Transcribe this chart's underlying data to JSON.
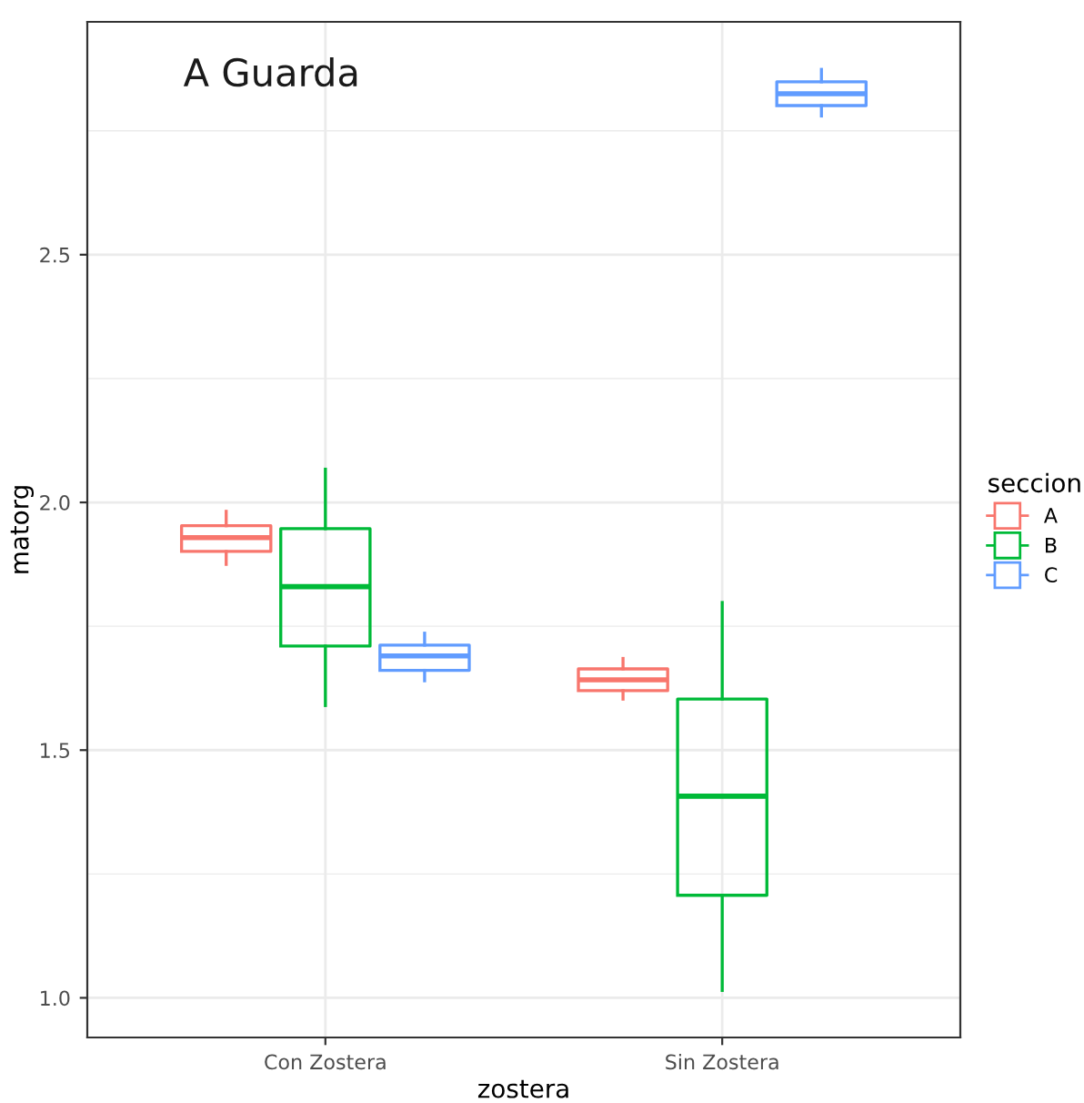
{
  "chart_data": {
    "type": "box",
    "title": "A Guarda",
    "xlabel": "zostera",
    "ylabel": "matorg",
    "legend_title": "seccion",
    "legend": "right",
    "grid": true,
    "categories": [
      "Con Zostera",
      "Sin Zostera"
    ],
    "ylim": [
      0.92,
      2.97
    ],
    "yticks": [
      {
        "value": 1,
        "label": "1.0"
      },
      {
        "value": 1.25,
        "label": null
      },
      1.5,
      {
        "value": 1.75,
        "label": null
      },
      {
        "value": 2,
        "label": "2.0"
      },
      {
        "value": 2.25,
        "label": null
      },
      2.5,
      {
        "value": 2.75,
        "label": null
      }
    ],
    "series": [
      {
        "name": "A",
        "color": "#f8766d",
        "boxes": [
          {
            "low": 1.875,
            "q1": 1.901,
            "median": 1.929,
            "q3": 1.953,
            "high": 1.982
          },
          {
            "low": 1.603,
            "q1": 1.62,
            "median": 1.642,
            "q3": 1.664,
            "high": 1.685
          }
        ]
      },
      {
        "name": "B",
        "color": "#00ba38",
        "boxes": [
          {
            "low": 1.59,
            "q1": 1.71,
            "median": 1.83,
            "q3": 1.947,
            "high": 2.067
          },
          {
            "low": 1.015,
            "q1": 1.207,
            "median": 1.407,
            "q3": 1.603,
            "high": 1.798
          }
        ]
      },
      {
        "name": "C",
        "color": "#619cff",
        "boxes": [
          {
            "low": 1.64,
            "q1": 1.661,
            "median": 1.69,
            "q3": 1.712,
            "high": 1.736
          },
          {
            "low": 2.78,
            "q1": 2.801,
            "median": 2.825,
            "q3": 2.849,
            "high": 2.874
          }
        ]
      }
    ]
  }
}
